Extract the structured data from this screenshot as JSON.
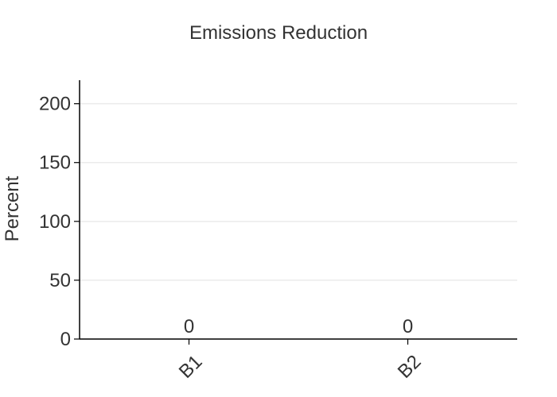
{
  "chart_data": {
    "type": "bar",
    "title": "Emissions Reduction",
    "xlabel": "",
    "ylabel": "Percent",
    "categories": [
      "B1",
      "B2"
    ],
    "values": [
      0,
      0
    ],
    "ylim": [
      0,
      220
    ],
    "yticks": [
      0,
      50,
      100,
      150,
      200
    ],
    "data_labels": [
      "0",
      "0"
    ],
    "grid": "horizontal",
    "bar_color": "#4c72b0",
    "axis_color": "#000000",
    "grid_color": "#ebebeb"
  }
}
